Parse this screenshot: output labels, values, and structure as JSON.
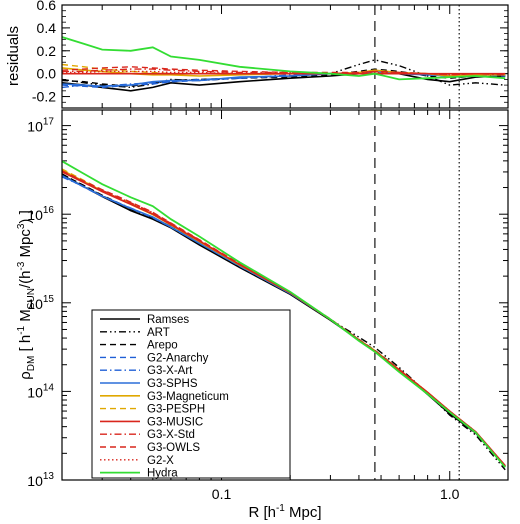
{
  "chart_data": {
    "type": "line",
    "panels": [
      {
        "name": "residuals",
        "ylabel": "residuals",
        "xscale": "log",
        "xlim": [
          0.02,
          1.8
        ],
        "ylim": [
          -0.3,
          0.6
        ],
        "yticks": [
          -0.2,
          0.0,
          0.2,
          0.4,
          0.6
        ],
        "ytick_labels": [
          "-0.2",
          "0.0",
          "0.2",
          "0.4",
          "0.6"
        ]
      },
      {
        "name": "density",
        "ylabel_main": "ρ",
        "ylabel_sub": "DM",
        "ylabel_rest": " [ h",
        "ylabel_sup1": "-1",
        "ylabel_m": " M",
        "ylabel_msub": "SUN",
        "ylabel_h": "/(h",
        "ylabel_sup2": "-3",
        "ylabel_end": " Mpc",
        "ylabel_sup3": "3",
        "ylabel_close": ") ]",
        "xlabel_main": "R [h",
        "xlabel_sup": "-1",
        "xlabel_end": " Mpc]",
        "xscale": "log",
        "yscale": "log",
        "xlim": [
          0.02,
          1.8
        ],
        "ylim": [
          10000000000000.0,
          1.5e+17
        ],
        "xticks": [
          0.1,
          1.0
        ],
        "xtick_labels": [
          "0.1",
          "1.0"
        ],
        "yticks_exp": [
          13,
          14,
          15,
          16,
          17
        ],
        "ytick_base": "10"
      }
    ],
    "vlines": [
      {
        "x": 0.47,
        "style": "dashed"
      },
      {
        "x": 1.1,
        "style": "dotted"
      }
    ],
    "legend": {
      "placement": "lower-left"
    },
    "density_reference": {
      "x": [
        0.02,
        0.03,
        0.05,
        0.08,
        0.12,
        0.2,
        0.3,
        0.47,
        0.7,
        1.0,
        1.3,
        1.6,
        1.75
      ],
      "y": [
        3e+16,
        1.8e+16,
        1e+16,
        5000000000000000.0,
        2700000000000000.0,
        1300000000000000.0,
        650000000000000.0,
        280000000000000.0,
        130000000000000.0,
        60000000000000.0,
        35000000000000.0,
        20000000000000.0,
        14500000000000.0
      ]
    },
    "residual_x": [
      0.02,
      0.025,
      0.03,
      0.04,
      0.05,
      0.06,
      0.08,
      0.12,
      0.2,
      0.3,
      0.4,
      0.47,
      0.6,
      0.8,
      1.0,
      1.3,
      1.75
    ],
    "series": [
      {
        "name": "Ramses",
        "color": "#000000",
        "dash": "solid",
        "width": 1.6,
        "residuals": [
          -0.08,
          -0.1,
          -0.12,
          -0.15,
          -0.12,
          -0.08,
          -0.1,
          -0.07,
          -0.04,
          -0.02,
          0.0,
          0.02,
          0.0,
          -0.05,
          -0.07,
          -0.03,
          -0.02
        ]
      },
      {
        "name": "ART",
        "color": "#000000",
        "dash": "dashdotdot",
        "width": 1.4,
        "residuals": [
          -0.05,
          -0.08,
          -0.1,
          -0.12,
          -0.09,
          -0.05,
          -0.06,
          -0.04,
          -0.02,
          0.0,
          0.08,
          0.12,
          0.07,
          -0.02,
          -0.1,
          -0.08,
          -0.1
        ]
      },
      {
        "name": "Arepo",
        "color": "#000000",
        "dash": "dashed",
        "width": 1.4,
        "residuals": [
          -0.06,
          -0.07,
          -0.09,
          -0.11,
          -0.08,
          -0.06,
          -0.05,
          -0.04,
          -0.03,
          -0.01,
          0.02,
          0.04,
          0.02,
          -0.02,
          -0.04,
          -0.02,
          -0.02
        ]
      },
      {
        "name": "G2-Anarchy",
        "color": "#1f5fd6",
        "dash": "dashed",
        "width": 1.4,
        "residuals": [
          -0.1,
          -0.11,
          -0.12,
          -0.1,
          -0.09,
          -0.07,
          -0.06,
          -0.04,
          -0.02,
          0.0,
          0.01,
          0.03,
          0.01,
          0.0,
          -0.02,
          -0.01,
          -0.02
        ]
      },
      {
        "name": "G3-X-Art",
        "color": "#1f5fd6",
        "dash": "dashdot",
        "width": 1.4,
        "residuals": [
          -0.12,
          -0.1,
          -0.11,
          -0.09,
          -0.08,
          -0.07,
          -0.05,
          -0.04,
          -0.01,
          0.0,
          0.0,
          0.02,
          0.0,
          -0.01,
          -0.01,
          0.0,
          -0.01
        ]
      },
      {
        "name": "G3-SPHS",
        "color": "#2b6fd9",
        "dash": "solid",
        "width": 1.6,
        "residuals": [
          -0.09,
          -0.1,
          -0.11,
          -0.1,
          -0.07,
          -0.06,
          -0.06,
          -0.03,
          -0.02,
          0.0,
          0.0,
          0.02,
          0.0,
          -0.01,
          -0.02,
          -0.01,
          -0.01
        ]
      },
      {
        "name": "G3-Magneticum",
        "color": "#e0a800",
        "dash": "solid",
        "width": 1.6,
        "residuals": [
          0.05,
          0.03,
          0.02,
          0.0,
          -0.01,
          -0.01,
          -0.02,
          -0.01,
          0.0,
          0.0,
          0.01,
          0.03,
          0.01,
          0.0,
          -0.02,
          -0.01,
          -0.01
        ]
      },
      {
        "name": "G3-PESPH",
        "color": "#e0a800",
        "dash": "dashed",
        "width": 1.4,
        "residuals": [
          0.08,
          0.06,
          0.04,
          0.02,
          0.01,
          0.0,
          0.0,
          0.0,
          0.0,
          0.0,
          0.01,
          0.02,
          0.0,
          0.0,
          -0.01,
          0.0,
          -0.01
        ]
      },
      {
        "name": "G3-MUSIC",
        "color": "#d9261c",
        "dash": "solid",
        "width": 1.6,
        "residuals": [
          0.0,
          0.0,
          0.0,
          0.0,
          0.0,
          0.0,
          0.0,
          0.0,
          0.0,
          0.0,
          0.0,
          0.0,
          0.0,
          0.0,
          0.0,
          0.0,
          0.0
        ]
      },
      {
        "name": "G3-X-Std",
        "color": "#d9261c",
        "dash": "dashdot",
        "width": 1.4,
        "residuals": [
          0.02,
          0.02,
          0.03,
          0.04,
          0.04,
          0.03,
          0.02,
          0.01,
          0.01,
          0.0,
          0.01,
          0.02,
          0.01,
          0.0,
          -0.01,
          0.0,
          -0.01
        ]
      },
      {
        "name": "G3-OWLS",
        "color": "#d9261c",
        "dash": "dashed",
        "width": 1.4,
        "residuals": [
          0.03,
          0.04,
          0.05,
          0.06,
          0.05,
          0.04,
          0.03,
          0.02,
          0.01,
          0.01,
          0.01,
          0.02,
          0.01,
          0.0,
          -0.01,
          0.0,
          0.0
        ]
      },
      {
        "name": "G2-X",
        "color": "#d9261c",
        "dash": "dotted",
        "width": 1.4,
        "residuals": [
          0.01,
          0.01,
          0.02,
          0.02,
          0.02,
          0.01,
          0.01,
          0.0,
          0.0,
          0.0,
          0.0,
          0.01,
          0.0,
          0.0,
          0.0,
          0.0,
          0.0
        ]
      },
      {
        "name": "Hydra",
        "color": "#33dd33",
        "dash": "solid",
        "width": 1.8,
        "residuals": [
          0.32,
          0.26,
          0.21,
          0.2,
          0.23,
          0.15,
          0.12,
          0.06,
          0.02,
          0.0,
          -0.02,
          0.0,
          -0.05,
          -0.04,
          -0.03,
          -0.02,
          -0.04
        ]
      }
    ]
  }
}
